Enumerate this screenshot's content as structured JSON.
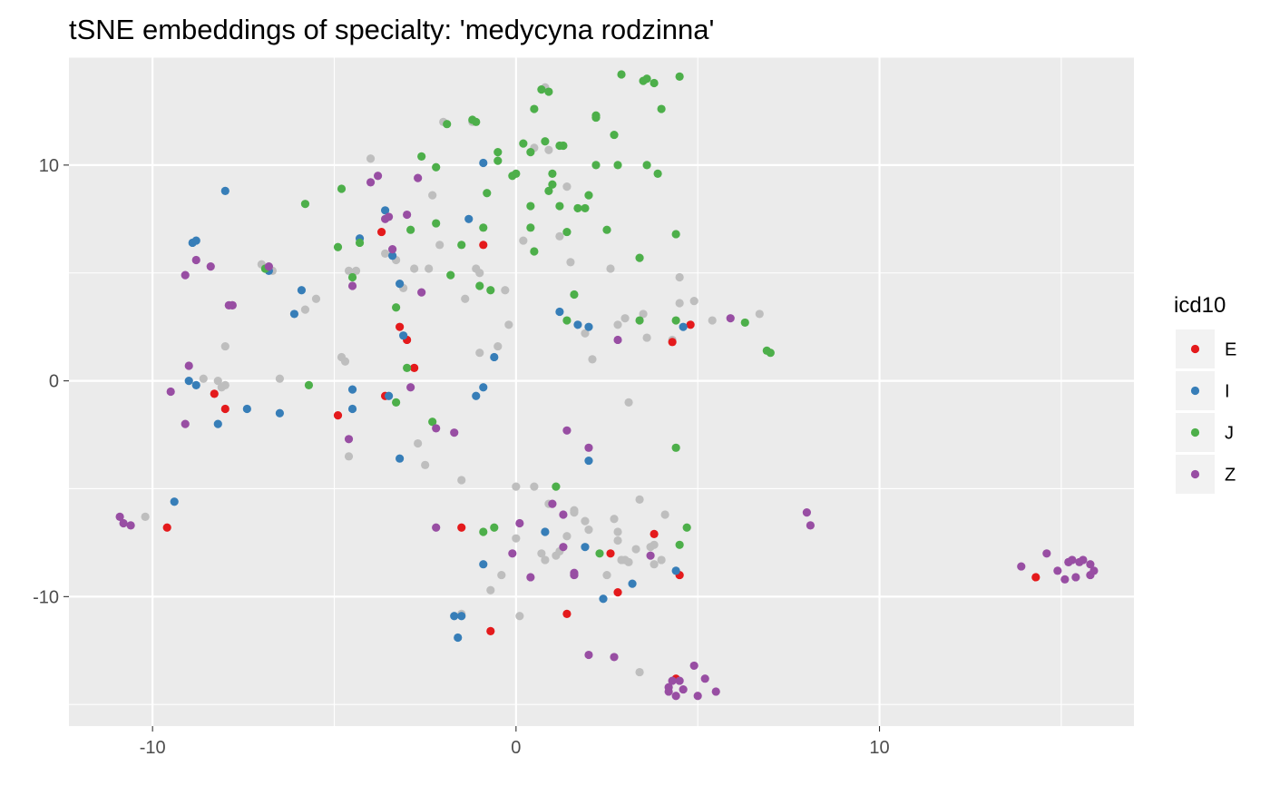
{
  "chart_data": {
    "type": "scatter",
    "title": "tSNE embeddings of specialty: 'medycyna rodzinna'",
    "xlabel": "",
    "ylabel": "",
    "xlim": [
      -12.3,
      17.0
    ],
    "ylim": [
      -16.0,
      15.0
    ],
    "xticks": [
      -10,
      0,
      10
    ],
    "xtick_labels": [
      "-10",
      "0",
      "10"
    ],
    "yticks": [
      -10,
      0,
      10
    ],
    "ytick_labels": [
      "-10",
      "0",
      "10"
    ],
    "grid": true,
    "legend": {
      "title": "icd10",
      "position": "right"
    },
    "background_color": "#ebebeb",
    "other_points_color": "#bebebe",
    "series": [
      {
        "name": "E",
        "color": "#e41a1c",
        "x": [
          -3.7,
          -3.2,
          -3.0,
          -2.8,
          -3.6,
          -4.9,
          -8.3,
          -8.0,
          -9.6,
          -0.9,
          4.3,
          4.8,
          -1.5,
          -0.7,
          1.4,
          2.8,
          3.8,
          2.6,
          4.5,
          4.4,
          14.3
        ],
        "y": [
          6.9,
          2.5,
          1.9,
          0.6,
          -0.7,
          -1.6,
          -0.6,
          -1.3,
          -6.8,
          6.3,
          1.8,
          2.6,
          -6.8,
          -11.6,
          -10.8,
          -9.8,
          -7.1,
          -8.0,
          -9.0,
          -13.8,
          -9.1
        ]
      },
      {
        "name": "I",
        "color": "#377eb8",
        "x": [
          -8.0,
          -8.9,
          -8.8,
          -6.8,
          -4.3,
          -3.6,
          -3.4,
          -3.2,
          -3.1,
          -5.9,
          -6.1,
          -1.3,
          -0.9,
          -9.0,
          -8.8,
          -8.2,
          -7.4,
          -6.5,
          -4.5,
          -4.5,
          -3.5,
          -3.2,
          -1.1,
          -0.9,
          -0.6,
          1.2,
          1.7,
          2.0,
          4.6,
          2.0,
          -9.4,
          0.8,
          1.9,
          4.4,
          -1.7,
          -1.5,
          -1.6,
          -0.9,
          2.4,
          3.2
        ],
        "y": [
          8.8,
          6.4,
          6.5,
          5.1,
          6.6,
          7.9,
          5.8,
          4.5,
          2.1,
          4.2,
          3.1,
          7.5,
          10.1,
          0.0,
          -0.2,
          -2.0,
          -1.3,
          -1.5,
          -0.4,
          -1.3,
          -0.7,
          -3.6,
          -0.7,
          -0.3,
          1.1,
          3.2,
          2.6,
          2.5,
          2.5,
          -3.7,
          -5.6,
          -7.0,
          -7.7,
          -8.8,
          -10.9,
          -10.9,
          -11.9,
          -8.5,
          -10.1,
          -9.4
        ]
      },
      {
        "name": "J",
        "color": "#4daf4a",
        "x": [
          -5.8,
          -6.9,
          -4.9,
          -4.5,
          -4.3,
          -4.8,
          -5.7,
          -3.3,
          -3.0,
          -2.6,
          -2.2,
          -1.9,
          -1.8,
          -1.2,
          -1.1,
          -1.0,
          -0.7,
          -0.5,
          -0.5,
          -0.1,
          0.0,
          0.2,
          0.4,
          0.5,
          0.7,
          0.8,
          0.9,
          0.9,
          1.0,
          1.3,
          1.4,
          1.6,
          1.9,
          2.2,
          2.2,
          2.5,
          2.7,
          2.8,
          2.9,
          3.4,
          3.5,
          3.6,
          3.8,
          3.9,
          4.0,
          4.4,
          4.5,
          -2.9,
          -2.2,
          -1.5,
          -0.9,
          -0.8,
          0.4,
          0.4,
          0.5,
          1.0,
          1.2,
          1.2,
          1.4,
          1.7,
          2.0,
          2.2,
          3.4,
          3.6,
          4.4,
          6.3,
          6.9,
          7.0,
          -3.3,
          -2.3,
          -0.9,
          -0.6,
          1.1,
          2.3,
          4.7,
          4.5,
          4.4
        ],
        "y": [
          8.2,
          5.2,
          6.2,
          4.8,
          6.4,
          8.9,
          -0.2,
          3.4,
          0.6,
          10.4,
          9.9,
          11.9,
          4.9,
          12.1,
          12.0,
          4.4,
          4.2,
          10.2,
          10.6,
          9.5,
          9.6,
          11.0,
          10.6,
          12.6,
          13.5,
          11.1,
          8.8,
          13.4,
          9.1,
          10.9,
          6.9,
          4.0,
          8.0,
          12.2,
          12.3,
          7.0,
          11.4,
          10.0,
          14.2,
          5.7,
          13.9,
          14.0,
          13.8,
          9.6,
          12.6,
          6.8,
          14.1,
          7.0,
          7.3,
          6.3,
          7.1,
          8.7,
          8.1,
          7.1,
          6.0,
          9.6,
          8.1,
          10.9,
          2.8,
          8.0,
          8.6,
          10.0,
          2.8,
          10.0,
          2.8,
          2.7,
          1.4,
          1.3,
          -1.0,
          -1.9,
          -7.0,
          -6.8,
          -4.9,
          -8.0,
          -6.8,
          -7.6,
          -3.1
        ]
      },
      {
        "name": "Z",
        "color": "#984ea3",
        "x": [
          -8.8,
          -9.1,
          -8.4,
          -7.9,
          -7.8,
          -6.8,
          -4.0,
          -3.8,
          -3.4,
          -3.0,
          -2.7,
          -4.5,
          -2.6,
          -3.6,
          -3.5,
          -2.9,
          -9.0,
          -9.5,
          -9.1,
          -4.6,
          -2.2,
          -1.7,
          1.4,
          2.0,
          2.8,
          5.9,
          8.0,
          8.1,
          -10.8,
          -10.9,
          -10.6,
          -2.2,
          0.1,
          -0.1,
          0.4,
          1.0,
          1.3,
          1.3,
          1.6,
          1.6,
          3.7,
          4.2,
          4.4,
          2.0,
          2.7,
          4.5,
          4.3,
          4.2,
          4.6,
          5.0,
          5.2,
          5.5,
          4.9,
          13.9,
          14.6,
          14.9,
          15.2,
          15.3,
          15.6,
          15.4,
          15.8,
          15.8,
          15.9,
          15.1,
          15.2,
          15.5
        ],
        "y": [
          5.6,
          4.9,
          5.3,
          3.5,
          3.5,
          5.3,
          9.2,
          9.5,
          6.1,
          7.7,
          9.4,
          4.4,
          4.1,
          7.5,
          7.6,
          -0.3,
          0.7,
          -0.5,
          -2.0,
          -2.7,
          -2.2,
          -2.4,
          -2.3,
          -3.1,
          1.9,
          2.9,
          -6.1,
          -6.7,
          -6.6,
          -6.3,
          -6.7,
          -6.8,
          -6.6,
          -8.0,
          -9.1,
          -5.7,
          -6.2,
          -7.7,
          -8.9,
          -9.0,
          -8.1,
          -14.2,
          -14.6,
          -12.7,
          -12.8,
          -13.9,
          -13.9,
          -14.4,
          -14.3,
          -14.6,
          -13.8,
          -14.4,
          -13.2,
          -8.6,
          -8.0,
          -8.8,
          -8.4,
          -8.3,
          -8.3,
          -9.1,
          -8.5,
          -9.0,
          -8.8,
          -9.2,
          -8.4,
          -8.4
        ]
      }
    ],
    "other_points": {
      "x": [
        -7.0,
        -6.7,
        -7.8,
        -5.5,
        -5.8,
        -4.4,
        -4.6,
        -4.0,
        -3.6,
        -3.3,
        -3.1,
        -4.8,
        -4.7,
        -2.8,
        -2.4,
        -2.1,
        -2.0,
        -1.2,
        -1.1,
        -1.0,
        -0.5,
        -0.3,
        -0.2,
        -1.4,
        -8.2,
        -8.6,
        -8.0,
        -8.1,
        -6.5,
        -1.0,
        -4.6,
        -2.7,
        -2.5,
        -1.5,
        -8.0,
        -10.2,
        -2.3,
        0.2,
        0.5,
        0.8,
        0.9,
        1.2,
        1.4,
        1.5,
        1.9,
        2.1,
        2.6,
        2.8,
        3.0,
        3.5,
        3.6,
        4.3,
        4.5,
        4.5,
        4.9,
        5.4,
        6.7,
        3.1,
        1.6,
        1.9,
        2.7,
        3.4,
        3.7,
        3.8,
        4.1,
        2.8,
        2.9,
        3.0,
        3.1,
        3.3,
        4.0,
        0.9,
        0.8,
        1.6,
        0.7,
        0.5,
        -0.4,
        0.0,
        0.8,
        1.1,
        1.2,
        1.4,
        2.0,
        2.8,
        3.8,
        2.5,
        -0.7,
        -1.5,
        0.1,
        0.0,
        3.4
      ],
      "y": [
        5.4,
        5.1,
        3.5,
        3.8,
        3.3,
        5.1,
        5.1,
        10.3,
        5.9,
        5.6,
        4.3,
        1.1,
        0.9,
        5.2,
        5.2,
        6.3,
        12.0,
        12.0,
        5.2,
        5.0,
        1.6,
        4.2,
        2.6,
        3.8,
        0.0,
        0.1,
        -0.2,
        -0.3,
        0.1,
        1.3,
        -3.5,
        -2.9,
        -3.9,
        -4.6,
        1.6,
        -6.3,
        8.6,
        6.5,
        10.8,
        13.6,
        10.7,
        6.7,
        9.0,
        5.5,
        2.2,
        1.0,
        5.2,
        2.6,
        2.9,
        3.1,
        2.0,
        1.9,
        3.6,
        4.8,
        3.7,
        2.8,
        3.1,
        -1.0,
        -6.1,
        -6.5,
        -6.4,
        -5.5,
        -7.7,
        -7.6,
        -6.2,
        -7.4,
        -8.3,
        -8.3,
        -8.4,
        -7.8,
        -8.3,
        -5.7,
        -7.0,
        -6.0,
        -8.0,
        -4.9,
        -9.0,
        -7.3,
        -8.3,
        -8.1,
        -7.9,
        -7.2,
        -6.9,
        -7.0,
        -8.5,
        -9.0,
        -9.7,
        -10.8,
        -10.9,
        -4.9,
        -13.5
      ]
    }
  }
}
